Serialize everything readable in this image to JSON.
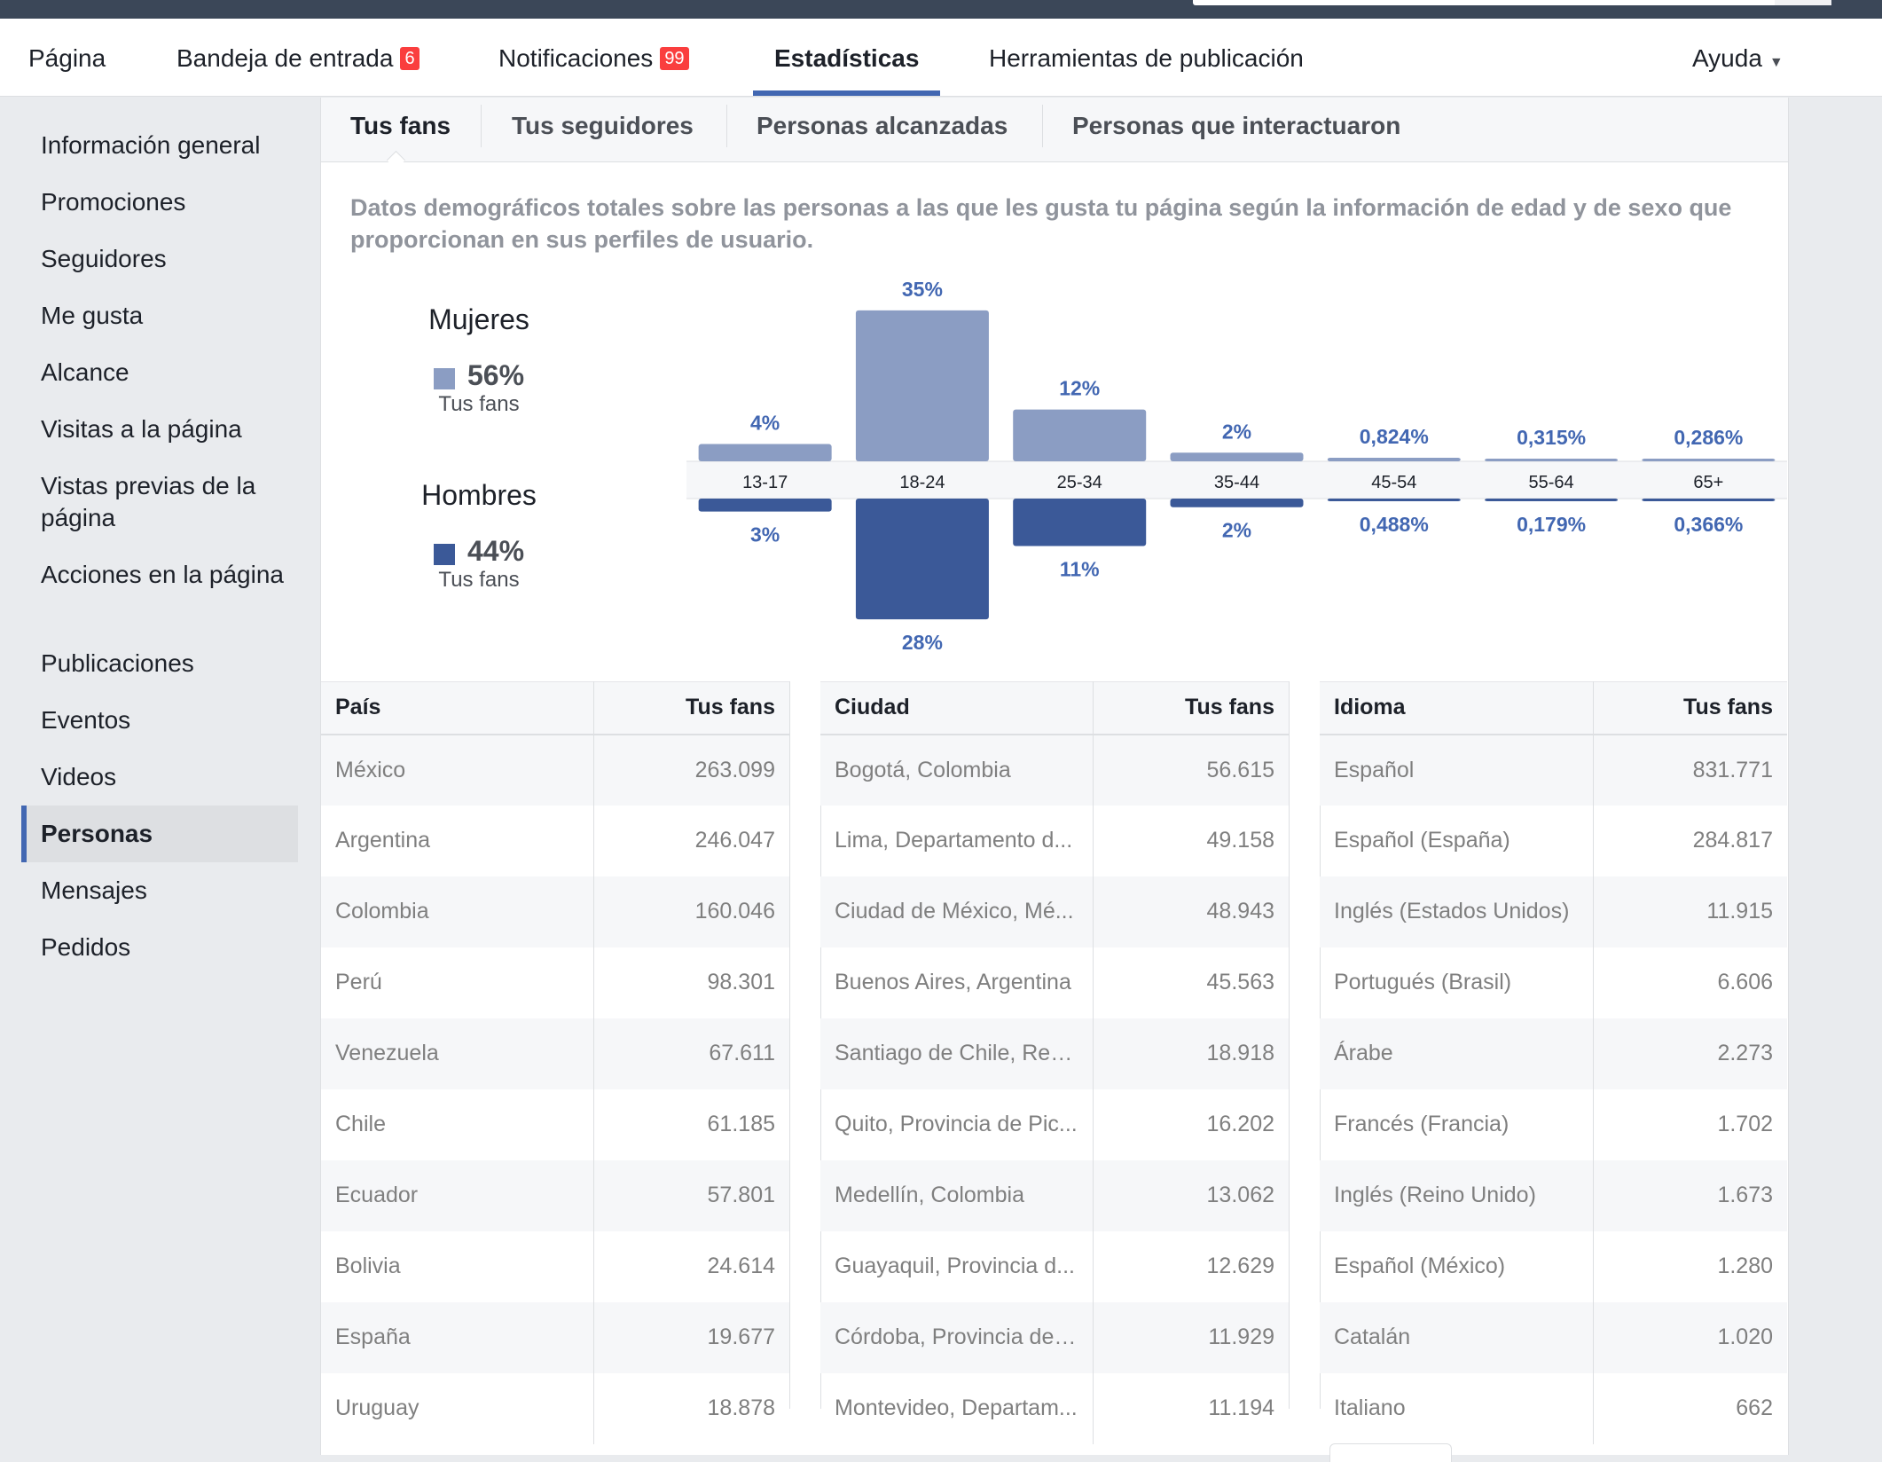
{
  "nav": {
    "items": [
      {
        "label": "Página"
      },
      {
        "label": "Bandeja de entrada",
        "badge": "6"
      },
      {
        "label": "Notificaciones",
        "badge": "99"
      },
      {
        "label": "Estadísticas"
      },
      {
        "label": "Herramientas de publicación"
      },
      {
        "label": "Ayuda"
      }
    ]
  },
  "sidebar": {
    "items": [
      {
        "label": "Información general"
      },
      {
        "label": "Promociones"
      },
      {
        "label": "Seguidores"
      },
      {
        "label": "Me gusta"
      },
      {
        "label": "Alcance"
      },
      {
        "label": "Visitas a la página"
      },
      {
        "label": "Vistas previas de la página"
      },
      {
        "label": "Acciones en la página"
      },
      {
        "label": "Publicaciones"
      },
      {
        "label": "Eventos"
      },
      {
        "label": "Videos"
      },
      {
        "label": "Personas"
      },
      {
        "label": "Mensajes"
      },
      {
        "label": "Pedidos"
      }
    ]
  },
  "subtabs": [
    "Tus fans",
    "Tus seguidores",
    "Personas alcanzadas",
    "Personas que interactuaron"
  ],
  "description": "Datos demográficos totales sobre las personas a las que les gusta tu página según la información de edad y de sexo que proporcionan en sus perfiles de usuario.",
  "legend": {
    "women": {
      "title": "Mujeres",
      "pct": "56%",
      "sub": "Tus fans",
      "color": "#8b9dc3"
    },
    "men": {
      "title": "Hombres",
      "pct": "44%",
      "sub": "Tus fans",
      "color": "#3b5998"
    }
  },
  "chart_data": {
    "type": "bar",
    "categories": [
      "13-17",
      "18-24",
      "25-34",
      "35-44",
      "45-54",
      "55-64",
      "65+"
    ],
    "series": [
      {
        "name": "Mujeres",
        "values": [
          4,
          35,
          12,
          2,
          0.824,
          0.315,
          0.286
        ],
        "labels": [
          "4%",
          "35%",
          "12%",
          "2%",
          "0,824%",
          "0,315%",
          "0,286%"
        ]
      },
      {
        "name": "Hombres",
        "values": [
          3,
          28,
          11,
          2,
          0.488,
          0.179,
          0.366
        ],
        "labels": [
          "3%",
          "28%",
          "11%",
          "2%",
          "0,488%",
          "0,179%",
          "0,366%"
        ]
      }
    ],
    "colors": {
      "women": "#8b9dc3",
      "men": "#3b5998",
      "label": "#4267b2"
    }
  },
  "tables": {
    "country": {
      "headers": [
        "País",
        "Tus fans"
      ],
      "rows": [
        [
          "México",
          "263.099"
        ],
        [
          "Argentina",
          "246.047"
        ],
        [
          "Colombia",
          "160.046"
        ],
        [
          "Perú",
          "98.301"
        ],
        [
          "Venezuela",
          "67.611"
        ],
        [
          "Chile",
          "61.185"
        ],
        [
          "Ecuador",
          "57.801"
        ],
        [
          "Bolivia",
          "24.614"
        ],
        [
          "España",
          "19.677"
        ],
        [
          "Uruguay",
          "18.878"
        ]
      ]
    },
    "city": {
      "headers": [
        "Ciudad",
        "Tus fans"
      ],
      "rows": [
        [
          "Bogotá, Colombia",
          "56.615"
        ],
        [
          "Lima, Departamento d...",
          "49.158"
        ],
        [
          "Ciudad de México, Mé...",
          "48.943"
        ],
        [
          "Buenos Aires, Argentina",
          "45.563"
        ],
        [
          "Santiago de Chile, Reg...",
          "18.918"
        ],
        [
          "Quito, Provincia de Pic...",
          "16.202"
        ],
        [
          "Medellín, Colombia",
          "13.062"
        ],
        [
          "Guayaquil, Provincia d...",
          "12.629"
        ],
        [
          "Córdoba, Provincia de ...",
          "11.929"
        ],
        [
          "Montevideo, Departam...",
          "11.194"
        ]
      ]
    },
    "language": {
      "headers": [
        "Idioma",
        "Tus fans"
      ],
      "rows": [
        [
          "Español",
          "831.771"
        ],
        [
          "Español (España)",
          "284.817"
        ],
        [
          "Inglés (Estados Unidos)",
          "11.915"
        ],
        [
          "Portugués (Brasil)",
          "6.606"
        ],
        [
          "Árabe",
          "2.273"
        ],
        [
          "Francés (Francia)",
          "1.702"
        ],
        [
          "Inglés (Reino Unido)",
          "1.673"
        ],
        [
          "Español (México)",
          "1.280"
        ],
        [
          "Catalán",
          "1.020"
        ],
        [
          "Italiano",
          "662"
        ]
      ]
    }
  }
}
